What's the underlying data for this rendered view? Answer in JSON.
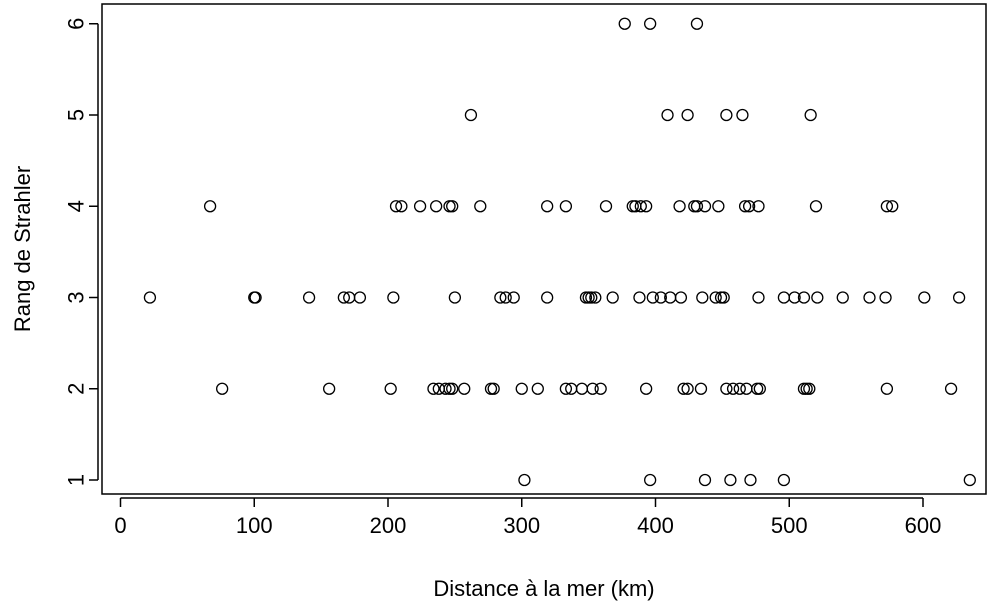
{
  "chart_data": {
    "type": "scatter",
    "title": "",
    "xlabel": "Distance à la mer (km)",
    "ylabel": "Rang de Strahler",
    "xlim": [
      0,
      650
    ],
    "ylim": [
      0.7,
      6.2
    ],
    "x_ticks": [
      "0",
      "100",
      "200",
      "300",
      "400",
      "500",
      "600"
    ],
    "y_ticks": [
      "1",
      "2",
      "3",
      "4",
      "5",
      "6"
    ],
    "grid": false,
    "legend": "none",
    "marker": "open-circle",
    "colors": {
      "marker": "#000000",
      "axis": "#000000",
      "background": "#ffffff"
    },
    "points": [
      {
        "x": 377,
        "y": 6
      },
      {
        "x": 396,
        "y": 6
      },
      {
        "x": 431,
        "y": 6
      },
      {
        "x": 262,
        "y": 5
      },
      {
        "x": 409,
        "y": 5
      },
      {
        "x": 424,
        "y": 5
      },
      {
        "x": 453,
        "y": 5
      },
      {
        "x": 465,
        "y": 5
      },
      {
        "x": 516,
        "y": 5
      },
      {
        "x": 67,
        "y": 4
      },
      {
        "x": 206,
        "y": 4
      },
      {
        "x": 210,
        "y": 4
      },
      {
        "x": 224,
        "y": 4
      },
      {
        "x": 236,
        "y": 4
      },
      {
        "x": 246,
        "y": 4
      },
      {
        "x": 248,
        "y": 4
      },
      {
        "x": 269,
        "y": 4
      },
      {
        "x": 319,
        "y": 4
      },
      {
        "x": 333,
        "y": 4
      },
      {
        "x": 363,
        "y": 4
      },
      {
        "x": 383,
        "y": 4
      },
      {
        "x": 385,
        "y": 4
      },
      {
        "x": 389,
        "y": 4
      },
      {
        "x": 393,
        "y": 4
      },
      {
        "x": 418,
        "y": 4
      },
      {
        "x": 429,
        "y": 4
      },
      {
        "x": 431,
        "y": 4
      },
      {
        "x": 437,
        "y": 4
      },
      {
        "x": 447,
        "y": 4
      },
      {
        "x": 467,
        "y": 4
      },
      {
        "x": 470,
        "y": 4
      },
      {
        "x": 477,
        "y": 4
      },
      {
        "x": 520,
        "y": 4
      },
      {
        "x": 573,
        "y": 4
      },
      {
        "x": 577,
        "y": 4
      },
      {
        "x": 22,
        "y": 3
      },
      {
        "x": 100,
        "y": 3
      },
      {
        "x": 101,
        "y": 3
      },
      {
        "x": 141,
        "y": 3
      },
      {
        "x": 167,
        "y": 3
      },
      {
        "x": 171,
        "y": 3
      },
      {
        "x": 179,
        "y": 3
      },
      {
        "x": 204,
        "y": 3
      },
      {
        "x": 250,
        "y": 3
      },
      {
        "x": 284,
        "y": 3
      },
      {
        "x": 288,
        "y": 3
      },
      {
        "x": 294,
        "y": 3
      },
      {
        "x": 319,
        "y": 3
      },
      {
        "x": 348,
        "y": 3
      },
      {
        "x": 350,
        "y": 3
      },
      {
        "x": 352,
        "y": 3
      },
      {
        "x": 355,
        "y": 3
      },
      {
        "x": 368,
        "y": 3
      },
      {
        "x": 388,
        "y": 3
      },
      {
        "x": 398,
        "y": 3
      },
      {
        "x": 404,
        "y": 3
      },
      {
        "x": 411,
        "y": 3
      },
      {
        "x": 419,
        "y": 3
      },
      {
        "x": 435,
        "y": 3
      },
      {
        "x": 445,
        "y": 3
      },
      {
        "x": 449,
        "y": 3
      },
      {
        "x": 451,
        "y": 3
      },
      {
        "x": 477,
        "y": 3
      },
      {
        "x": 496,
        "y": 3
      },
      {
        "x": 504,
        "y": 3
      },
      {
        "x": 511,
        "y": 3
      },
      {
        "x": 521,
        "y": 3
      },
      {
        "x": 540,
        "y": 3
      },
      {
        "x": 560,
        "y": 3
      },
      {
        "x": 572,
        "y": 3
      },
      {
        "x": 601,
        "y": 3
      },
      {
        "x": 627,
        "y": 3
      },
      {
        "x": 76,
        "y": 2
      },
      {
        "x": 156,
        "y": 2
      },
      {
        "x": 202,
        "y": 2
      },
      {
        "x": 234,
        "y": 2
      },
      {
        "x": 238,
        "y": 2
      },
      {
        "x": 243,
        "y": 2
      },
      {
        "x": 246,
        "y": 2
      },
      {
        "x": 248,
        "y": 2
      },
      {
        "x": 257,
        "y": 2
      },
      {
        "x": 277,
        "y": 2
      },
      {
        "x": 279,
        "y": 2
      },
      {
        "x": 300,
        "y": 2
      },
      {
        "x": 312,
        "y": 2
      },
      {
        "x": 333,
        "y": 2
      },
      {
        "x": 337,
        "y": 2
      },
      {
        "x": 345,
        "y": 2
      },
      {
        "x": 353,
        "y": 2
      },
      {
        "x": 359,
        "y": 2
      },
      {
        "x": 393,
        "y": 2
      },
      {
        "x": 421,
        "y": 2
      },
      {
        "x": 424,
        "y": 2
      },
      {
        "x": 434,
        "y": 2
      },
      {
        "x": 453,
        "y": 2
      },
      {
        "x": 458,
        "y": 2
      },
      {
        "x": 463,
        "y": 2
      },
      {
        "x": 468,
        "y": 2
      },
      {
        "x": 476,
        "y": 2
      },
      {
        "x": 478,
        "y": 2
      },
      {
        "x": 511,
        "y": 2
      },
      {
        "x": 513,
        "y": 2
      },
      {
        "x": 515,
        "y": 2
      },
      {
        "x": 573,
        "y": 2
      },
      {
        "x": 621,
        "y": 2
      },
      {
        "x": 302,
        "y": 1
      },
      {
        "x": 396,
        "y": 1
      },
      {
        "x": 437,
        "y": 1
      },
      {
        "x": 456,
        "y": 1
      },
      {
        "x": 471,
        "y": 1
      },
      {
        "x": 496,
        "y": 1
      },
      {
        "x": 635,
        "y": 1
      }
    ]
  }
}
